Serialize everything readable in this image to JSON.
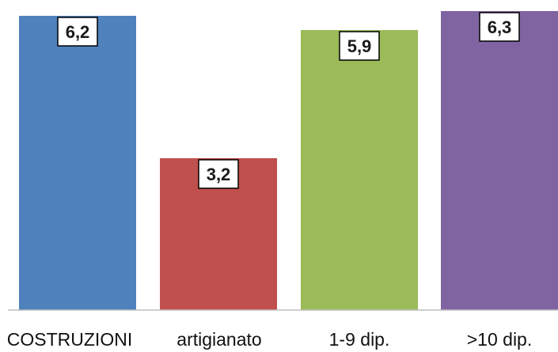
{
  "chart_data": {
    "type": "bar",
    "categories": [
      "COSTRUZIONI",
      "artigianato",
      "1-9 dip.",
      ">10 dip."
    ],
    "values": [
      6.2,
      3.2,
      5.9,
      6.3
    ],
    "value_labels": [
      "6,2",
      "3,2",
      "5,9",
      "6,3"
    ],
    "colors": [
      "#4F81BD",
      "#C0504D",
      "#9BBB59",
      "#8064A2"
    ],
    "title": "",
    "xlabel": "",
    "ylabel": "",
    "ylim": [
      0,
      6.35
    ],
    "grid": false,
    "legend": "none"
  }
}
